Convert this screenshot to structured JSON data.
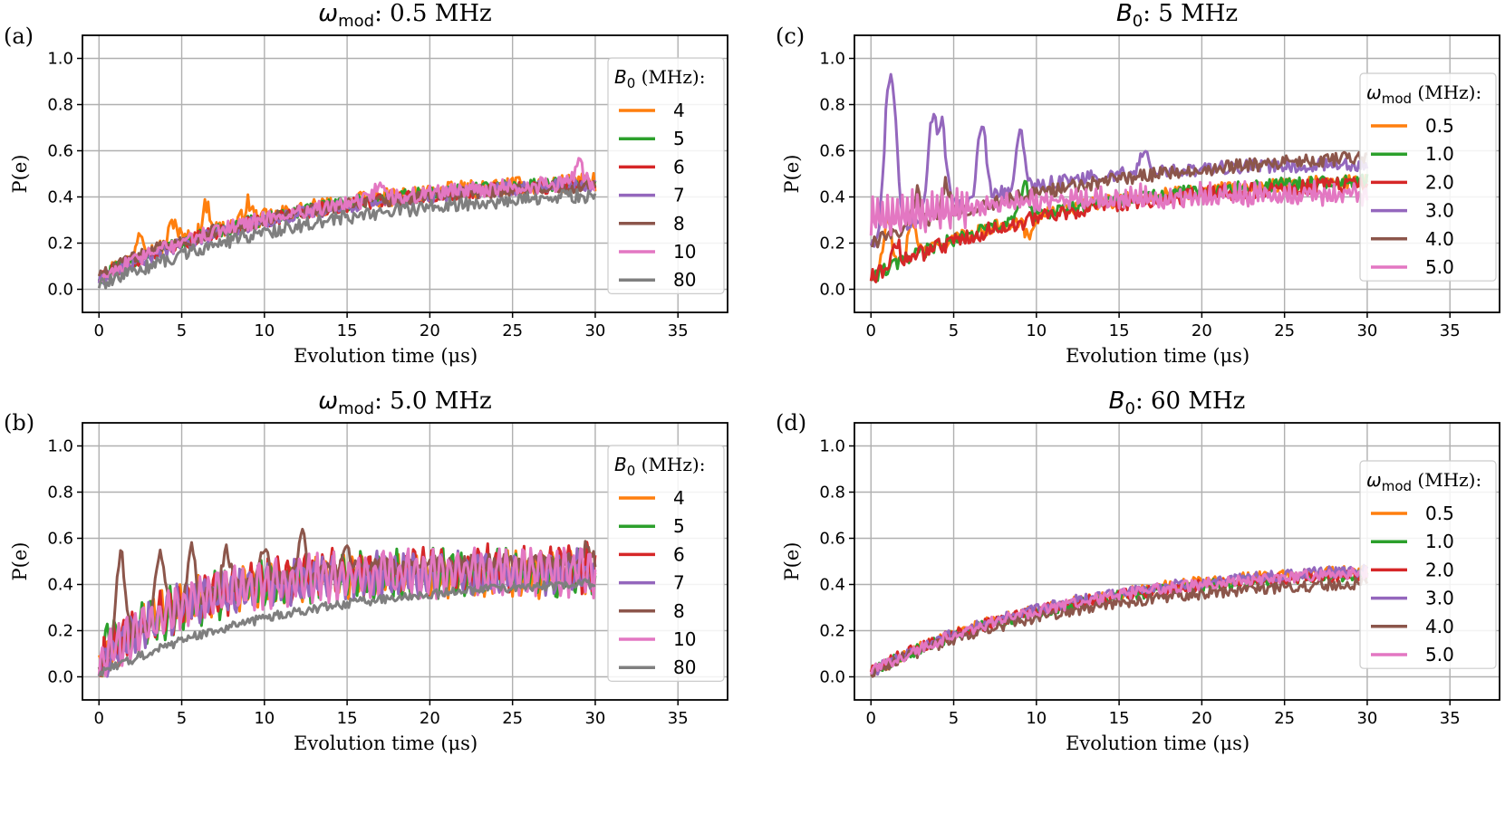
{
  "chart_data": [
    {
      "id": "a",
      "type": "line",
      "label": "(a)",
      "title": "ω_mod: 0.5 MHz",
      "title_symbol": "ω",
      "title_sub": "mod",
      "title_rest": ": 0.5 MHz",
      "xlabel": "Evolution time (μs)",
      "ylabel": "P(e)",
      "xlim": [
        -1,
        38
      ],
      "ylim": [
        -0.1,
        1.1
      ],
      "xticks": [
        0,
        5,
        10,
        15,
        20,
        25,
        30,
        35
      ],
      "yticks": [
        "0.0",
        "0.2",
        "0.4",
        "0.6",
        "0.8",
        "1.0"
      ],
      "grid": true,
      "legend_title": "B_0 (MHz):",
      "legend_title_symbol": "B",
      "legend_title_sub": "0",
      "legend_title_rest": " (MHz):",
      "legend_position": "right",
      "series": [
        {
          "name": "4",
          "color": "#ff7f0e",
          "start": 0.06,
          "end": 0.5,
          "tau": 12,
          "noise": 0.04,
          "bumps": [
            [
              2.5,
              0.12
            ],
            [
              4.5,
              0.1
            ],
            [
              6.5,
              0.12
            ],
            [
              9,
              0.08
            ]
          ]
        },
        {
          "name": "5",
          "color": "#2ca02c",
          "start": 0.05,
          "end": 0.5,
          "tau": 12,
          "noise": 0.03,
          "bumps": []
        },
        {
          "name": "6",
          "color": "#d62728",
          "start": 0.05,
          "end": 0.49,
          "tau": 12,
          "noise": 0.03,
          "bumps": []
        },
        {
          "name": "7",
          "color": "#9467bd",
          "start": 0.04,
          "end": 0.49,
          "tau": 12,
          "noise": 0.03,
          "bumps": []
        },
        {
          "name": "8",
          "color": "#8c564b",
          "start": 0.07,
          "end": 0.48,
          "tau": 12,
          "noise": 0.03,
          "bumps": []
        },
        {
          "name": "10",
          "color": "#e377c2",
          "start": 0.05,
          "end": 0.5,
          "tau": 12,
          "noise": 0.035,
          "bumps": [
            [
              17,
              0.08
            ],
            [
              29,
              0.08
            ]
          ]
        },
        {
          "name": "80",
          "color": "#7f7f7f",
          "start": 0.01,
          "end": 0.45,
          "tau": 13,
          "noise": 0.03,
          "bumps": []
        }
      ]
    },
    {
      "id": "b",
      "type": "line",
      "label": "(b)",
      "title": "ω_mod: 5.0 MHz",
      "title_symbol": "ω",
      "title_sub": "mod",
      "title_rest": ": 5.0 MHz",
      "xlabel": "Evolution time (μs)",
      "ylabel": "P(e)",
      "xlim": [
        -1,
        38
      ],
      "ylim": [
        -0.1,
        1.1
      ],
      "xticks": [
        0,
        5,
        10,
        15,
        20,
        25,
        30,
        35
      ],
      "yticks": [
        "0.0",
        "0.2",
        "0.4",
        "0.6",
        "0.8",
        "1.0"
      ],
      "grid": true,
      "legend_title": "B_0 (MHz):",
      "legend_title_symbol": "B",
      "legend_title_sub": "0",
      "legend_title_rest": " (MHz):",
      "legend_position": "right",
      "series": [
        {
          "name": "4",
          "color": "#ff7f0e",
          "start": 0.06,
          "end": 0.45,
          "tau": 5,
          "noise": 0.04,
          "osc": 0.07,
          "period": 0.55,
          "bumps": []
        },
        {
          "name": "5",
          "color": "#2ca02c",
          "start": 0.05,
          "end": 0.45,
          "tau": 5,
          "noise": 0.04,
          "osc": 0.08,
          "period": 0.55,
          "bumps": [
            [
              0.7,
              0.12
            ]
          ]
        },
        {
          "name": "6",
          "color": "#d62728",
          "start": 0.05,
          "end": 0.47,
          "tau": 5,
          "noise": 0.04,
          "osc": 0.08,
          "period": 0.55,
          "bumps": []
        },
        {
          "name": "7",
          "color": "#9467bd",
          "start": 0.05,
          "end": 0.45,
          "tau": 5,
          "noise": 0.04,
          "osc": 0.07,
          "period": 0.55,
          "bumps": []
        },
        {
          "name": "8",
          "color": "#8c564b",
          "start": 0.05,
          "end": 0.5,
          "tau": 6,
          "noise": 0.04,
          "bumps": [
            [
              1.3,
              0.42
            ],
            [
              3.7,
              0.3
            ],
            [
              5.6,
              0.22
            ],
            [
              7.7,
              0.18
            ],
            [
              10,
              0.15
            ],
            [
              12.3,
              0.16
            ],
            [
              15,
              0.08
            ],
            [
              29.5,
              0.08
            ]
          ]
        },
        {
          "name": "10",
          "color": "#e377c2",
          "start": 0.05,
          "end": 0.46,
          "tau": 5,
          "noise": 0.04,
          "osc": 0.08,
          "period": 0.5,
          "bumps": []
        },
        {
          "name": "80",
          "color": "#7f7f7f",
          "start": 0.01,
          "end": 0.44,
          "tau": 12,
          "noise": 0.02,
          "bumps": []
        }
      ]
    },
    {
      "id": "c",
      "type": "line",
      "label": "(c)",
      "title": "B_0: 5 MHz",
      "title_symbol": "B",
      "title_sub": "0",
      "title_rest": ": 5 MHz",
      "xlabel": "Evolution time (μs)",
      "ylabel": "P(e)",
      "xlim": [
        -1,
        38
      ],
      "ylim": [
        -0.1,
        1.1
      ],
      "xticks": [
        0,
        5,
        10,
        15,
        20,
        25,
        30,
        35
      ],
      "yticks": [
        "0.0",
        "0.2",
        "0.4",
        "0.6",
        "0.8",
        "1.0"
      ],
      "grid": true,
      "legend_title": "ω_mod (MHz):",
      "legend_title_symbol": "ω",
      "legend_title_sub": "mod",
      "legend_title_rest": " (MHz):",
      "legend_position": "right",
      "series": [
        {
          "name": "0.5",
          "color": "#ff7f0e",
          "start": 0.05,
          "end": 0.5,
          "tau": 11,
          "noise": 0.03,
          "bumps": [
            [
              1,
              0.2
            ],
            [
              2.5,
              0.15
            ],
            [
              9.5,
              -0.08
            ]
          ]
        },
        {
          "name": "1.0",
          "color": "#2ca02c",
          "start": 0.05,
          "end": 0.5,
          "tau": 11,
          "noise": 0.03,
          "bumps": [
            [
              9.3,
              0.15
            ]
          ]
        },
        {
          "name": "2.0",
          "color": "#d62728",
          "start": 0.05,
          "end": 0.48,
          "tau": 11,
          "noise": 0.035,
          "bumps": [
            [
              1.5,
              0.1
            ]
          ]
        },
        {
          "name": "3.0",
          "color": "#9467bd",
          "start": 0.2,
          "end": 0.55,
          "tau": 8,
          "noise": 0.03,
          "bumps": [
            [
              1,
              0.5
            ],
            [
              1.4,
              0.45
            ],
            [
              3.7,
              0.4
            ],
            [
              4.3,
              0.35
            ],
            [
              6.7,
              0.33
            ],
            [
              9,
              0.25
            ],
            [
              16.5,
              0.08
            ]
          ]
        },
        {
          "name": "4.0",
          "color": "#8c564b",
          "start": 0.2,
          "end": 0.62,
          "tau": 14,
          "noise": 0.03,
          "bumps": [
            [
              2.8,
              0.15
            ],
            [
              4.5,
              0.14
            ]
          ]
        },
        {
          "name": "5.0",
          "color": "#e377c2",
          "start": 0.3,
          "end": 0.42,
          "tau": 10,
          "noise": 0.03,
          "osc": 0.08,
          "period": 0.3,
          "oscEnd": 6,
          "bumps": []
        }
      ]
    },
    {
      "id": "d",
      "type": "line",
      "label": "(d)",
      "title": "B_0: 60 MHz",
      "title_symbol": "B",
      "title_sub": "0",
      "title_rest": ": 60 MHz",
      "xlabel": "Evolution time (μs)",
      "ylabel": "P(e)",
      "xlim": [
        -1,
        38
      ],
      "ylim": [
        -0.1,
        1.1
      ],
      "xticks": [
        0,
        5,
        10,
        15,
        20,
        25,
        30,
        35
      ],
      "yticks": [
        "0.0",
        "0.2",
        "0.4",
        "0.6",
        "0.8",
        "1.0"
      ],
      "grid": true,
      "legend_title": "ω_mod (MHz):",
      "legend_title_symbol": "ω",
      "legend_title_sub": "mod",
      "legend_title_rest": " (MHz):",
      "legend_position": "right",
      "series": [
        {
          "name": "0.5",
          "color": "#ff7f0e",
          "start": 0.02,
          "end": 0.5,
          "tau": 12,
          "noise": 0.025,
          "bumps": []
        },
        {
          "name": "1.0",
          "color": "#2ca02c",
          "start": 0.02,
          "end": 0.48,
          "tau": 12,
          "noise": 0.025,
          "bumps": []
        },
        {
          "name": "2.0",
          "color": "#d62728",
          "start": 0.03,
          "end": 0.48,
          "tau": 12,
          "noise": 0.025,
          "bumps": []
        },
        {
          "name": "3.0",
          "color": "#9467bd",
          "start": 0.02,
          "end": 0.5,
          "tau": 12,
          "noise": 0.025,
          "bumps": []
        },
        {
          "name": "4.0",
          "color": "#8c564b",
          "start": 0.02,
          "end": 0.44,
          "tau": 12,
          "noise": 0.025,
          "bumps": []
        },
        {
          "name": "5.0",
          "color": "#e377c2",
          "start": 0.02,
          "end": 0.49,
          "tau": 12,
          "noise": 0.025,
          "bumps": []
        }
      ]
    }
  ]
}
